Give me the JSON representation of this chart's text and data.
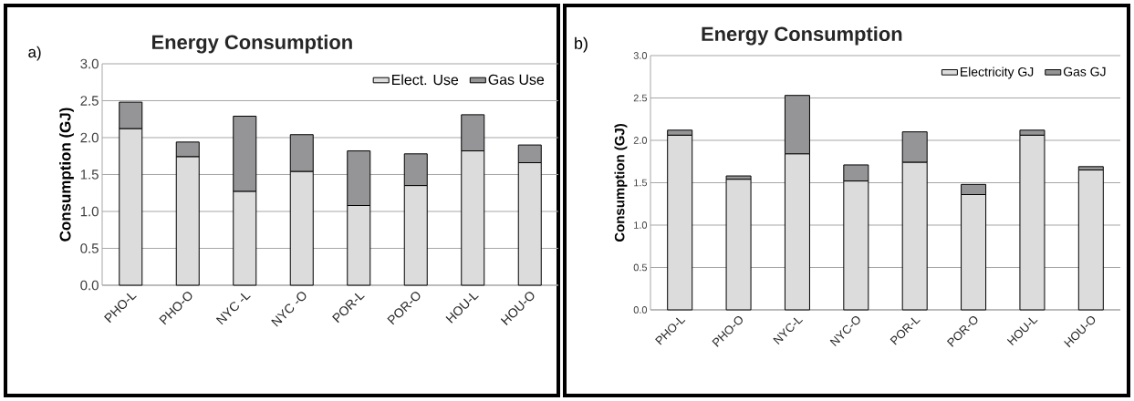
{
  "chart_data": [
    {
      "type": "bar",
      "title": "Energy Consumption",
      "ylabel": "Consumption (GJ)",
      "annotations": [
        "a)"
      ],
      "categories": [
        "PHO-L",
        "PHO-O",
        "NYC -L",
        "NYC -O",
        "POR-L",
        "POR-O",
        "HOU-L",
        "HOU-O"
      ],
      "stacked": true,
      "series": [
        {
          "name": "Elect. Use",
          "color": "#dcdcdd",
          "values": [
            2.12,
            1.74,
            1.27,
            1.54,
            1.08,
            1.35,
            1.82,
            1.66
          ]
        },
        {
          "name": "Gas Use",
          "color": "#959597",
          "values": [
            0.36,
            0.2,
            1.02,
            0.5,
            0.74,
            0.43,
            0.49,
            0.24
          ]
        }
      ],
      "ylim": [
        0,
        3
      ],
      "yticks": [
        {
          "value": 0,
          "label": "0.0"
        },
        {
          "value": 0.5,
          "label": "0.5"
        },
        {
          "value": 1,
          "label": "1.0"
        },
        {
          "value": 1.5,
          "label": "1.5"
        },
        {
          "value": 2,
          "label": "2.0"
        },
        {
          "value": 2.5,
          "label": "2.5"
        },
        {
          "value": 3,
          "label": "3.0"
        }
      ],
      "grid": "y",
      "legend": "top right"
    },
    {
      "type": "bar",
      "title": "Energy Consumption",
      "ylabel": "Consumption (GJ)",
      "annotations": [
        "b)"
      ],
      "categories": [
        "PHO-L",
        "PHO-O",
        "NYC-L",
        "NYC-O",
        "POR-L",
        "POR-O",
        "HOU-L",
        "HOU-O"
      ],
      "stacked": true,
      "series": [
        {
          "name": "Electricity GJ",
          "color": "#dcdcdd",
          "values": [
            2.06,
            1.54,
            1.84,
            1.52,
            1.74,
            1.36,
            2.06,
            1.65
          ]
        },
        {
          "name": "Gas GJ",
          "color": "#959597",
          "values": [
            0.06,
            0.04,
            0.69,
            0.19,
            0.36,
            0.12,
            0.06,
            0.04
          ]
        }
      ],
      "ylim": [
        0,
        3
      ],
      "yticks": [
        {
          "value": 0,
          "label": "0.0"
        },
        {
          "value": 0.5,
          "label": "0.5"
        },
        {
          "value": 1,
          "label": "1.0"
        },
        {
          "value": 1.5,
          "label": "1.5"
        },
        {
          "value": 2,
          "label": "2.0"
        },
        {
          "value": 2.5,
          "label": "2.5"
        },
        {
          "value": 3,
          "label": "3.0"
        }
      ],
      "grid": "y",
      "legend": "top right"
    }
  ]
}
